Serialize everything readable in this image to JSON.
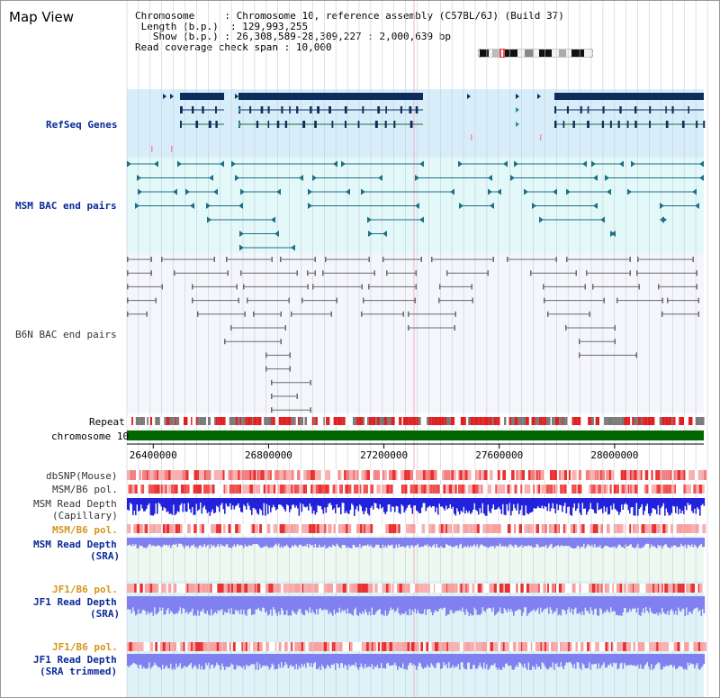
{
  "window": {
    "title": "Map View"
  },
  "info": {
    "chromosome_key": "Chromosome",
    "chromosome_value": "Chromosome 10, reference assembly (C57BL/6J) (Build 37)",
    "length_key": "Length (b.p.)",
    "length_value": "129,993,255",
    "show_key": "Show (b.p.)",
    "show_value": "26,308,589-28,309,227 : 2,000,639 bp",
    "coverage_key": "Read coverage check span",
    "coverage_value": "10,000"
  },
  "tracks": {
    "refseq": "RefSeq Genes",
    "msm_bac": "MSM BAC end pairs",
    "b6n_bac": "B6N BAC end pairs",
    "repeat": "Repeat",
    "chromosome": "chromosome 10",
    "dbsnp": "dbSNP(Mouse)",
    "msm_b6_pol_1": "MSM/B6 pol.",
    "msm_read_depth_cap_1": "MSM Read Depth",
    "msm_read_depth_cap_2": "(Capillary)",
    "msm_b6_pol_2": "MSM/B6 pol.",
    "msm_read_depth_sra_1": "MSM Read Depth",
    "msm_read_depth_sra_2": "(SRA)",
    "jf1_b6_pol_1": "JF1/B6 pol.",
    "jf1_read_depth_1": "JF1 Read Depth",
    "jf1_read_depth_2": "(SRA)",
    "jf1_b6_pol_2": "JF1/B6 pol.",
    "jf1_read_depth_trim_1": "JF1 Read Depth",
    "jf1_read_depth_trim_2": "(SRA trimmed)"
  },
  "axis": {
    "ticks": [
      "26400000",
      "26800000",
      "27200000",
      "27600000",
      "28000000"
    ],
    "tick_values": [
      26400000,
      26800000,
      27200000,
      27600000,
      28000000
    ],
    "range_start": 26308589,
    "range_end": 28309227
  },
  "colors": {
    "refseq_bg": "#d7eefa",
    "bac_bg": "#e3f8f8",
    "msm_bac_feature": "#1b6f86",
    "b6n_feature": "#6b6b6b",
    "refseq_feature": "#0d2e5c",
    "chromosome_bar": "#006600",
    "repeat_red": "#e02020",
    "repeat_gray": "#7a7a7a",
    "snp_red": "#f08080",
    "depth_blue": "#2222dd",
    "depth_light": "#8080f0",
    "label_blue": "#0b2a99",
    "label_gold": "#d6951b"
  },
  "icons": {
    "ideogram": "chromosome-ideogram-icon"
  }
}
